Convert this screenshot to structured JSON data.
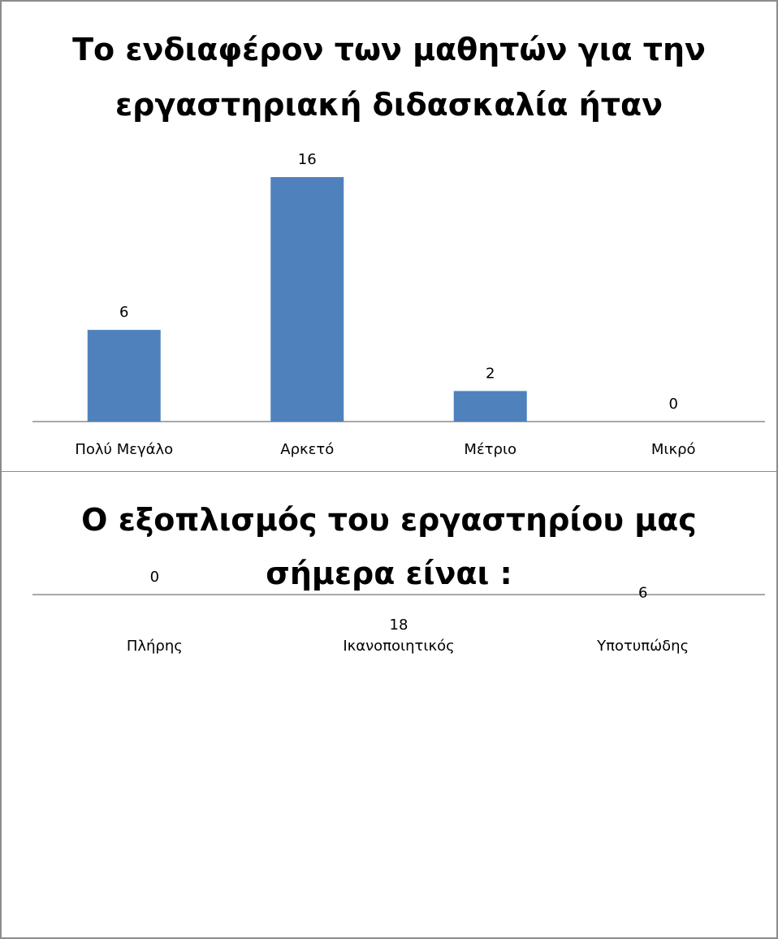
{
  "chart_data": [
    {
      "type": "bar",
      "title_lines": [
        "Το ενδιαφέρον των μαθητών για την",
        "εργαστηριακή διδασκαλία ήταν"
      ],
      "categories": [
        "Πολύ Μεγάλο",
        "Αρκετό",
        "Μέτριο",
        "Μικρό"
      ],
      "values": [
        6,
        16,
        2,
        0
      ],
      "data_labels": [
        "6",
        "16",
        "2",
        "0"
      ],
      "xlabel": "",
      "ylabel": "",
      "ylim": [
        0,
        16
      ],
      "grid": false,
      "legend": "none",
      "bar_color": "#4f81bd"
    },
    {
      "type": "bar",
      "title_lines": [
        "Ο εξοπλισμός του εργαστηρίου μας",
        "σήμερα είναι :"
      ],
      "categories": [
        "Πλήρης",
        "Ικανοποιητικός",
        "Υποτυπώδης"
      ],
      "values": [
        0,
        18,
        6
      ],
      "data_labels": [
        "0",
        "18",
        "6"
      ],
      "xlabel": "",
      "ylabel": "",
      "ylim": [
        0,
        18
      ],
      "grid": false,
      "legend": "none",
      "bar_color": "#4f81bd"
    }
  ]
}
